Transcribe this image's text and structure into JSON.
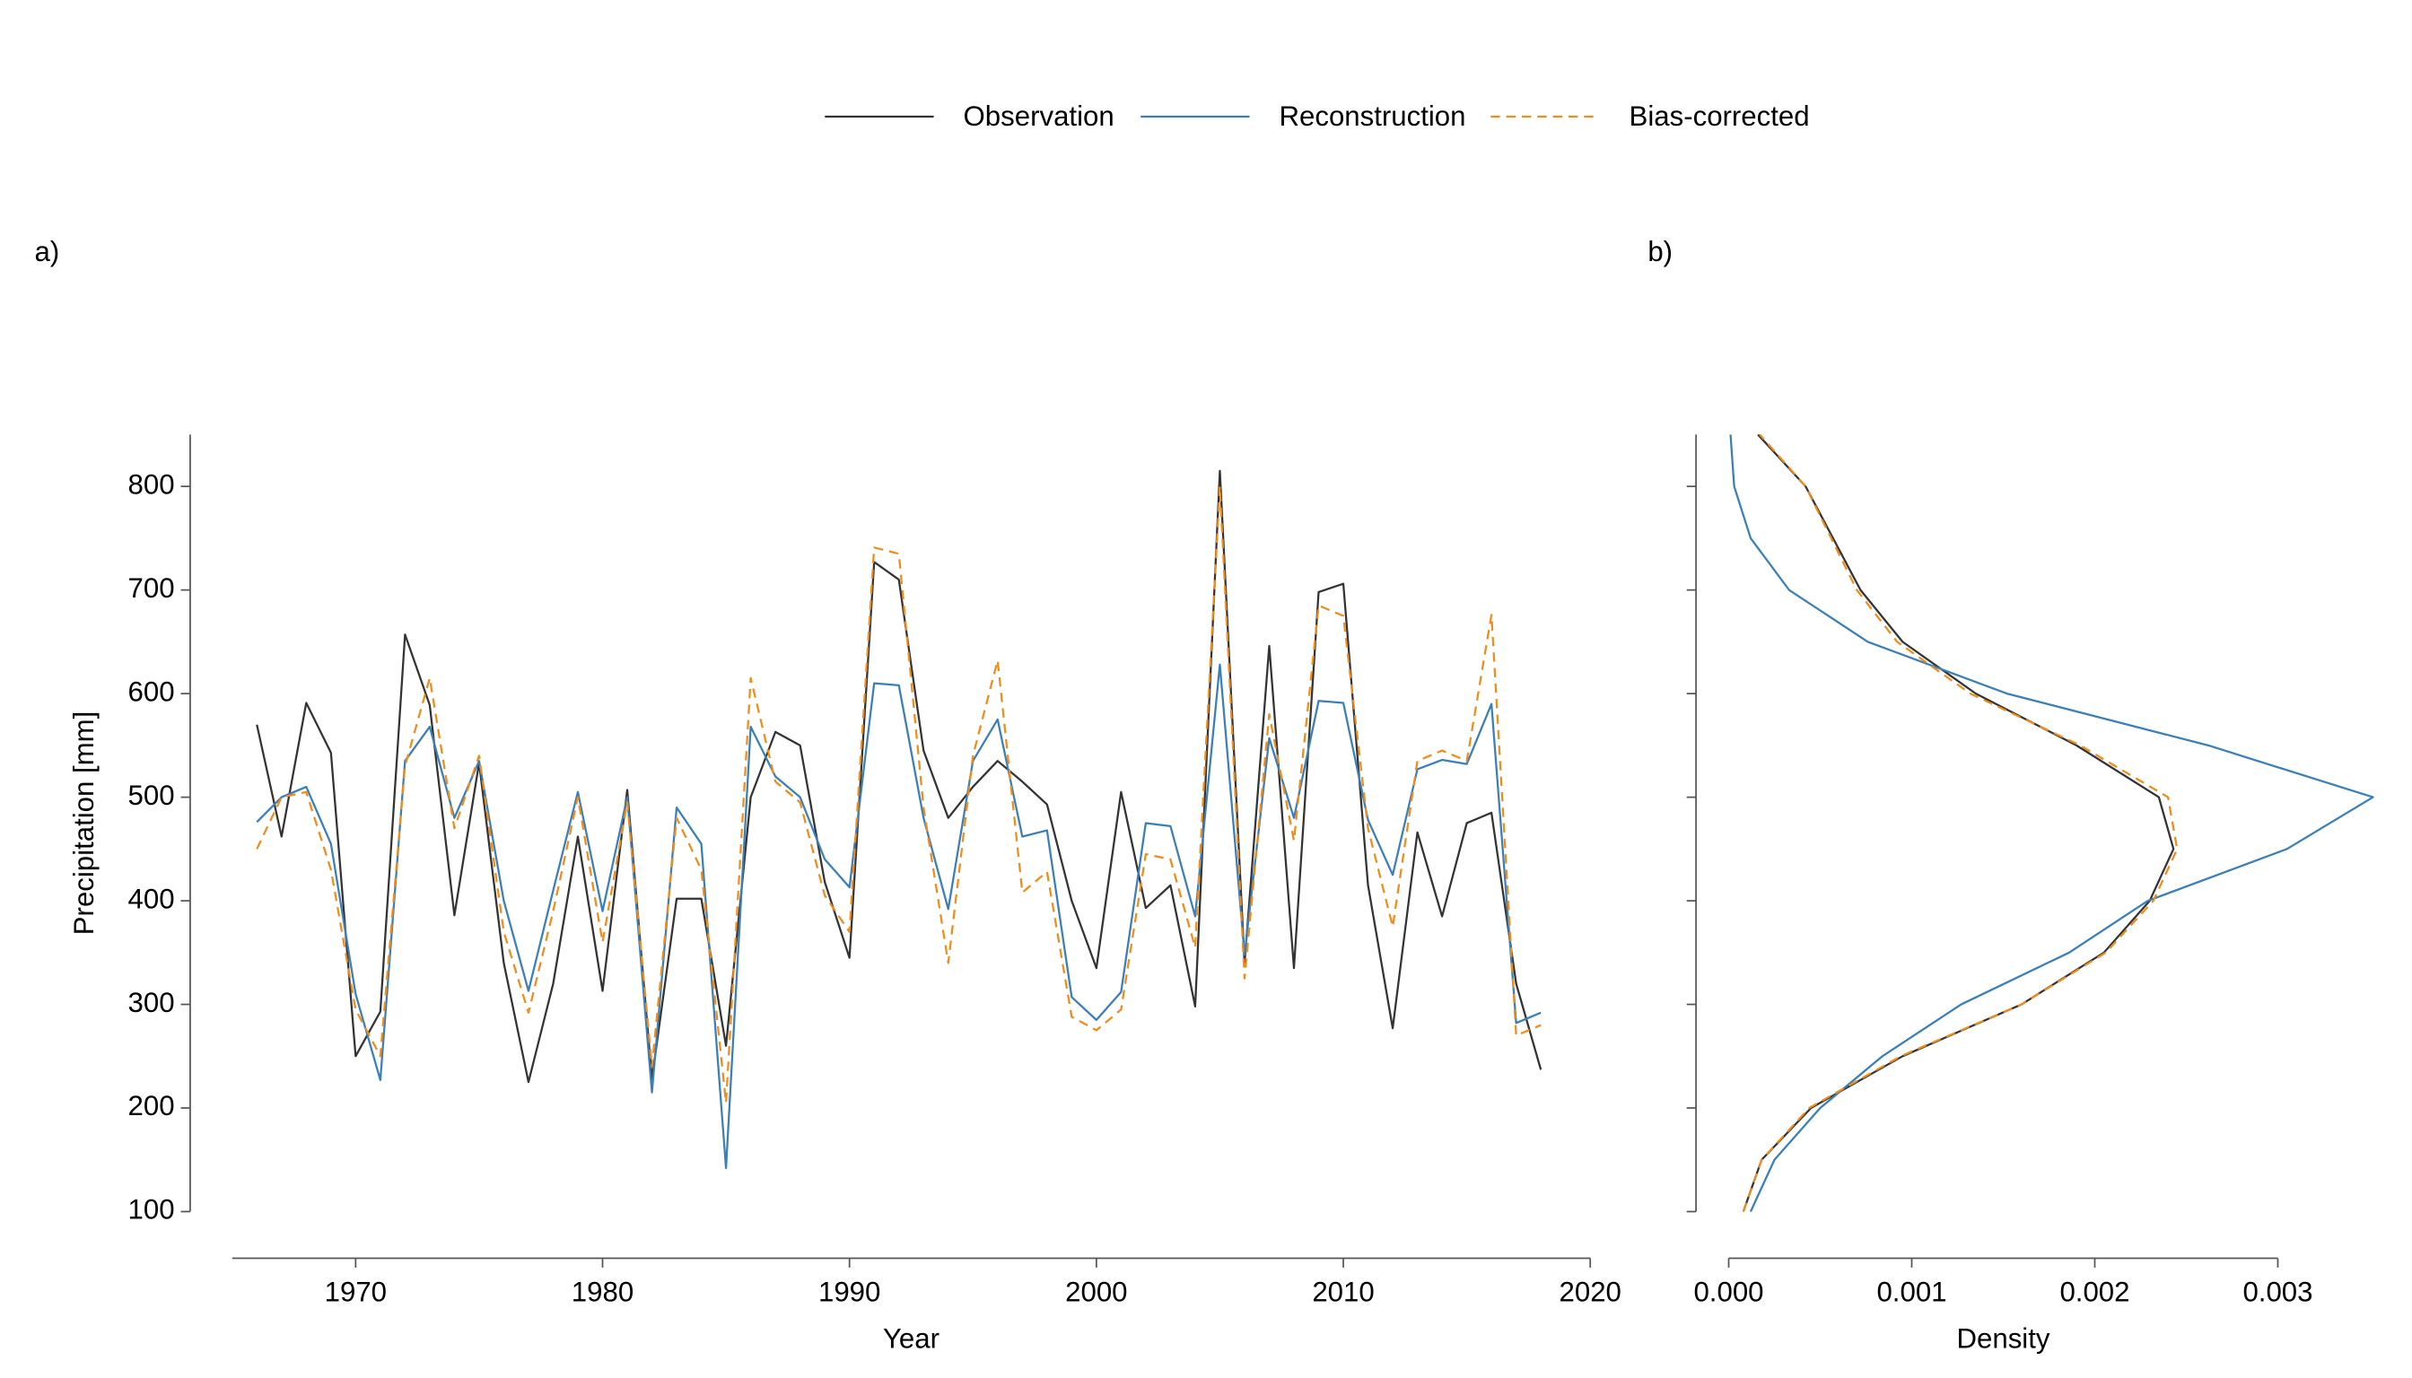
{
  "chart_data": [
    {
      "type": "line",
      "panel_label": "a)",
      "x_label": "Year",
      "y_label": "Precipitation [mm]",
      "x": [
        1966,
        1967,
        1968,
        1969,
        1970,
        1971,
        1972,
        1973,
        1974,
        1975,
        1976,
        1977,
        1978,
        1979,
        1980,
        1981,
        1982,
        1983,
        1984,
        1985,
        1986,
        1987,
        1988,
        1989,
        1990,
        1991,
        1992,
        1993,
        1994,
        1995,
        1996,
        1997,
        1998,
        1999,
        2000,
        2001,
        2002,
        2003,
        2004,
        2005,
        2006,
        2007,
        2008,
        2009,
        2010,
        2011,
        2012,
        2013,
        2014,
        2015,
        2016,
        2017,
        2018
      ],
      "series": [
        {
          "name": "Observation",
          "color": "#333333",
          "dash": "none",
          "values": [
            570,
            462,
            591,
            543,
            250,
            293,
            657,
            589,
            386,
            533,
            340,
            225,
            320,
            462,
            313,
            507,
            228,
            402,
            402,
            260,
            500,
            563,
            550,
            418,
            345,
            727,
            710,
            545,
            480,
            510,
            535,
            515,
            493,
            400,
            335,
            505,
            393,
            415,
            298,
            815,
            340,
            646,
            335,
            698,
            706,
            415,
            277,
            466,
            385,
            475,
            485,
            320,
            237
          ]
        },
        {
          "name": "Reconstruction",
          "color": "#3a7fb8",
          "dash": "none",
          "values": [
            476,
            500,
            510,
            455,
            310,
            227,
            535,
            568,
            480,
            535,
            400,
            313,
            410,
            505,
            390,
            500,
            215,
            490,
            455,
            142,
            568,
            520,
            500,
            440,
            413,
            610,
            608,
            480,
            392,
            535,
            575,
            462,
            468,
            307,
            285,
            312,
            475,
            472,
            385,
            628,
            348,
            557,
            480,
            593,
            591,
            478,
            425,
            527,
            536,
            532,
            590,
            282,
            292
          ]
        },
        {
          "name": "Bias-corrected",
          "color": "#f08c1a",
          "dash": "6 4",
          "values": [
            450,
            500,
            505,
            430,
            295,
            250,
            530,
            615,
            470,
            540,
            370,
            292,
            390,
            500,
            360,
            495,
            240,
            480,
            430,
            205,
            615,
            515,
            495,
            405,
            370,
            741,
            735,
            490,
            340,
            540,
            632,
            408,
            428,
            288,
            275,
            295,
            445,
            440,
            355,
            800,
            325,
            580,
            458,
            685,
            675,
            470,
            375,
            535,
            545,
            535,
            676,
            270,
            280
          ]
        }
      ],
      "xlim": [
        1965,
        2020
      ],
      "xticks": [
        1970,
        1980,
        1990,
        2000,
        2010,
        2020
      ],
      "ylim": [
        100,
        850
      ],
      "yticks": [
        100,
        200,
        300,
        400,
        500,
        600,
        700,
        800
      ]
    },
    {
      "type": "density",
      "panel_label": "b)",
      "x_label": "Density",
      "y": [
        100,
        150,
        200,
        250,
        300,
        350,
        400,
        450,
        500,
        550,
        600,
        650,
        700,
        750,
        800,
        850
      ],
      "series": [
        {
          "name": "Observation",
          "color": "#333333",
          "dash": "none",
          "values": [
            8e-05,
            0.00018,
            0.00045,
            0.00095,
            0.0016,
            0.00205,
            0.0023,
            0.00243,
            0.00235,
            0.0019,
            0.00135,
            0.00095,
            0.00072,
            0.00057,
            0.00042,
            0.00016
          ]
        },
        {
          "name": "Reconstruction",
          "color": "#3a7fb8",
          "dash": "none",
          "values": [
            0.00012,
            0.00025,
            0.0005,
            0.00084,
            0.00127,
            0.00186,
            0.00229,
            0.00305,
            0.00352,
            0.00262,
            0.00152,
            0.00076,
            0.00033,
            0.00012,
            3e-05,
            1e-05
          ]
        },
        {
          "name": "Bias-corrected",
          "color": "#f08c1a",
          "dash": "6 4",
          "values": [
            8e-05,
            0.00018,
            0.00044,
            0.00094,
            0.0016,
            0.00206,
            0.00232,
            0.00245,
            0.0024,
            0.00192,
            0.00132,
            0.00092,
            0.0007,
            0.00056,
            0.00042,
            0.00017
          ]
        }
      ],
      "xlim": [
        0,
        0.003
      ],
      "xticks": [
        {
          "value": 0,
          "label": "0.000"
        },
        {
          "value": 0.001,
          "label": "0.001"
        },
        {
          "value": 0.002,
          "label": "0.002"
        },
        {
          "value": 0.003,
          "label": "0.003"
        }
      ],
      "ylim": [
        100,
        850
      ],
      "yticks": [
        100,
        200,
        300,
        400,
        500,
        600,
        700,
        800
      ]
    }
  ]
}
